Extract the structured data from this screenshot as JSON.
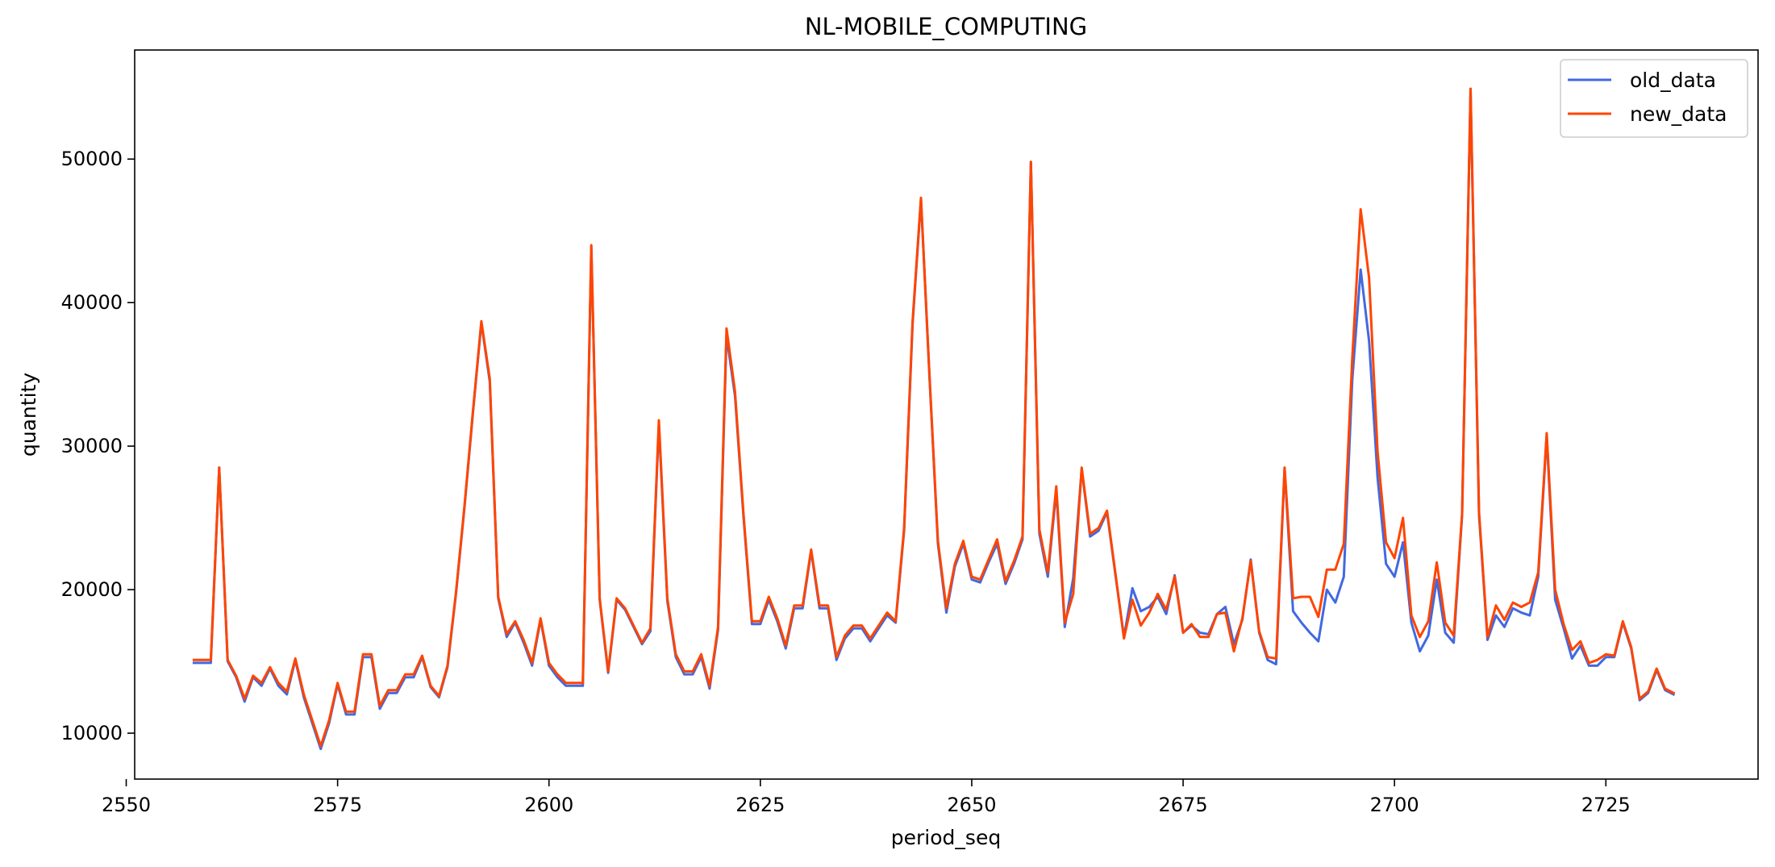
{
  "chart_data": {
    "type": "line",
    "title": "NL-MOBILE_COMPUTING",
    "xlabel": "period_seq",
    "ylabel": "quantity",
    "xlim": [
      2551,
      2743
    ],
    "ylim": [
      6800,
      57600
    ],
    "xticks": [
      2550,
      2575,
      2600,
      2625,
      2650,
      2675,
      2700,
      2725
    ],
    "yticks": [
      10000,
      20000,
      30000,
      40000,
      50000
    ],
    "grid": false,
    "legend_position": "top-right",
    "x_start": 2558,
    "series": [
      {
        "name": "old_data",
        "color": "#4169e1",
        "values": [
          14900,
          14900,
          14900,
          28500,
          15000,
          13900,
          12200,
          13900,
          13300,
          14500,
          13300,
          12700,
          15100,
          12500,
          10700,
          8900,
          10700,
          13400,
          11300,
          11300,
          15300,
          15300,
          11700,
          12800,
          12800,
          13900,
          13900,
          15300,
          13200,
          12500,
          14600,
          19700,
          25700,
          32300,
          38600,
          34500,
          19400,
          16700,
          17700,
          16300,
          14700,
          17900,
          14700,
          13900,
          13300,
          13300,
          13300,
          43900,
          19300,
          14200,
          19300,
          18600,
          17400,
          16200,
          17100,
          31500,
          19200,
          15300,
          14100,
          14100,
          15300,
          13100,
          17200,
          37700,
          33500,
          25100,
          17600,
          17600,
          19300,
          17800,
          15900,
          18700,
          18700,
          22700,
          18700,
          18700,
          15100,
          16600,
          17300,
          17300,
          16400,
          17300,
          18200,
          17700,
          24100,
          38500,
          47200,
          34900,
          23200,
          18400,
          21600,
          23200,
          20700,
          20500,
          21900,
          23200,
          20400,
          21800,
          23500,
          49800,
          23900,
          20900,
          26900,
          17400,
          20800,
          28400,
          23700,
          24100,
          25400,
          21000,
          16700,
          20100,
          18500,
          18800,
          19500,
          18300,
          21000,
          17000,
          17500,
          17000,
          16900,
          18300,
          18800,
          16200,
          17900,
          22100,
          17000,
          15100,
          14800,
          28400,
          18500,
          17700,
          17000,
          16400,
          20000,
          19100,
          20900,
          34600,
          42300,
          37300,
          27800,
          21800,
          20900,
          23300,
          17700,
          15700,
          16800,
          20700,
          17000,
          16300,
          25200,
          54800,
          25200,
          16500,
          18200,
          17400,
          18700,
          18400,
          18200,
          20900,
          30700,
          19300,
          17300,
          15200,
          16100,
          14700,
          14700,
          15300,
          15300,
          17700,
          15900,
          12300,
          12800,
          14400,
          13000,
          12700
        ]
      },
      {
        "name": "new_data",
        "color": "#ff4500",
        "values": [
          15100,
          15100,
          15100,
          28500,
          15100,
          14000,
          12400,
          14000,
          13500,
          14600,
          13500,
          12900,
          15200,
          12700,
          10900,
          9100,
          10900,
          13500,
          11500,
          11500,
          15500,
          15500,
          11900,
          13000,
          13000,
          14100,
          14100,
          15400,
          13300,
          12600,
          14700,
          19800,
          25800,
          32400,
          38700,
          34700,
          19500,
          16900,
          17800,
          16500,
          14900,
          18000,
          14900,
          14100,
          13500,
          13500,
          13500,
          44000,
          19400,
          14300,
          19400,
          18700,
          17500,
          16300,
          17300,
          31800,
          19400,
          15500,
          14300,
          14300,
          15500,
          13300,
          17400,
          38200,
          33800,
          25300,
          17800,
          17800,
          19500,
          18000,
          16100,
          18900,
          18900,
          22800,
          18900,
          18900,
          15300,
          16800,
          17500,
          17500,
          16600,
          17500,
          18400,
          17800,
          24300,
          38700,
          47300,
          35000,
          23400,
          18700,
          21800,
          23400,
          20900,
          20700,
          22100,
          23500,
          20600,
          22000,
          23700,
          49800,
          24200,
          21200,
          27200,
          17700,
          19700,
          28500,
          23900,
          24300,
          25500,
          21100,
          16600,
          19300,
          17500,
          18400,
          19700,
          18600,
          20900,
          17000,
          17600,
          16700,
          16700,
          18300,
          18400,
          15700,
          18000,
          22000,
          17100,
          15300,
          15200,
          28500,
          19400,
          19500,
          19500,
          18100,
          21400,
          21400,
          23200,
          36100,
          46500,
          41700,
          29600,
          23300,
          22200,
          25000,
          18200,
          16700,
          17800,
          21900,
          17700,
          16800,
          25300,
          54900,
          25400,
          16700,
          18900,
          17900,
          19100,
          18800,
          19100,
          21200,
          30900,
          20000,
          17600,
          15800,
          16400,
          14900,
          15100,
          15500,
          15400,
          17800,
          16000,
          12400,
          12900,
          14500,
          13100,
          12800
        ]
      }
    ]
  }
}
